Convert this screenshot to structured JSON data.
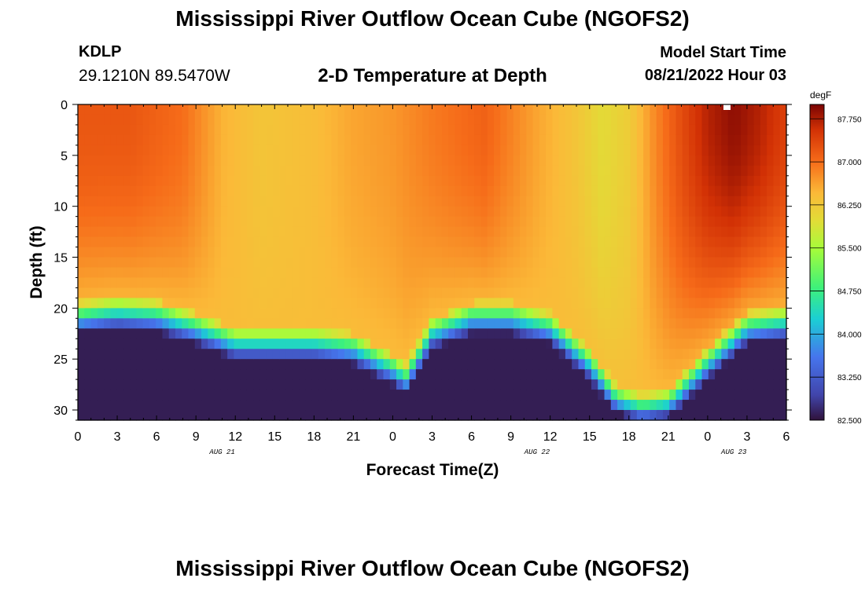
{
  "header": {
    "title": "Mississippi River Outflow Ocean Cube (NGOFS2)",
    "station": "KDLP",
    "coords": "29.1210N  89.5470W",
    "subtitle": "2-D Temperature at Depth",
    "model_label": "Model Start Time",
    "model_time": "08/21/2022 Hour 03"
  },
  "footer": {
    "title": "Mississippi River Outflow Ocean Cube (NGOFS2)"
  },
  "chart_data": {
    "type": "heatmap",
    "title": "2-D Temperature at Depth",
    "xlabel": "Forecast Time(Z)",
    "ylabel": "Depth (ft)",
    "x_start": 0,
    "x_end": 54,
    "x_ticks": [
      "0",
      "3",
      "6",
      "9",
      "12",
      "15",
      "18",
      "21",
      "0",
      "3",
      "6",
      "9",
      "12",
      "15",
      "18",
      "21",
      "0",
      "3",
      "6"
    ],
    "date_labels": [
      {
        "text": "AUG 21",
        "hour": 11
      },
      {
        "text": "AUG 22",
        "hour": 35
      },
      {
        "text": "AUG 23",
        "hour": 50
      }
    ],
    "ylim": [
      0,
      31
    ],
    "y_ticks": [
      0,
      5,
      10,
      15,
      20,
      25,
      30
    ],
    "colorbar": {
      "unit": "degF",
      "min": 82.5,
      "max": 88.0,
      "ticks": [
        "87.750",
        "87.000",
        "86.250",
        "85.500",
        "84.750",
        "84.000",
        "83.250",
        "82.500"
      ]
    },
    "thermocline_depth_ft": [
      {
        "hour": 0,
        "depth": 19.5
      },
      {
        "hour": 3,
        "depth": 19
      },
      {
        "hour": 6,
        "depth": 19.3
      },
      {
        "hour": 9,
        "depth": 20.5
      },
      {
        "hour": 12,
        "depth": 22
      },
      {
        "hour": 15,
        "depth": 22
      },
      {
        "hour": 18,
        "depth": 22
      },
      {
        "hour": 21,
        "depth": 22.5
      },
      {
        "hour": 24,
        "depth": 24.5
      },
      {
        "hour": 25,
        "depth": 25.5
      },
      {
        "hour": 27,
        "depth": 21
      },
      {
        "hour": 30,
        "depth": 19.5
      },
      {
        "hour": 33,
        "depth": 19.5
      },
      {
        "hour": 36,
        "depth": 20.5
      },
      {
        "hour": 39,
        "depth": 24
      },
      {
        "hour": 41,
        "depth": 27.5
      },
      {
        "hour": 43,
        "depth": 28.5
      },
      {
        "hour": 45,
        "depth": 28
      },
      {
        "hour": 48,
        "depth": 24
      },
      {
        "hour": 51,
        "depth": 20.5
      },
      {
        "hour": 54,
        "depth": 20
      }
    ],
    "surface_temp_degF": [
      {
        "hour": 0,
        "temp": 87.2
      },
      {
        "hour": 4,
        "temp": 87.2
      },
      {
        "hour": 8,
        "temp": 87.0
      },
      {
        "hour": 11,
        "temp": 86.5
      },
      {
        "hour": 14,
        "temp": 86.3
      },
      {
        "hour": 18,
        "temp": 86.4
      },
      {
        "hour": 21,
        "temp": 86.6
      },
      {
        "hour": 24,
        "temp": 86.7
      },
      {
        "hour": 27,
        "temp": 86.9
      },
      {
        "hour": 31,
        "temp": 87.1
      },
      {
        "hour": 35,
        "temp": 86.6
      },
      {
        "hour": 38,
        "temp": 86.3
      },
      {
        "hour": 40,
        "temp": 86.0
      },
      {
        "hour": 42,
        "temp": 86.2
      },
      {
        "hour": 44,
        "temp": 86.8
      },
      {
        "hour": 46,
        "temp": 87.3
      },
      {
        "hour": 48,
        "temp": 87.7
      },
      {
        "hour": 50,
        "temp": 87.9
      },
      {
        "hour": 52,
        "temp": 87.7
      },
      {
        "hour": 54,
        "temp": 87.4
      }
    ]
  }
}
